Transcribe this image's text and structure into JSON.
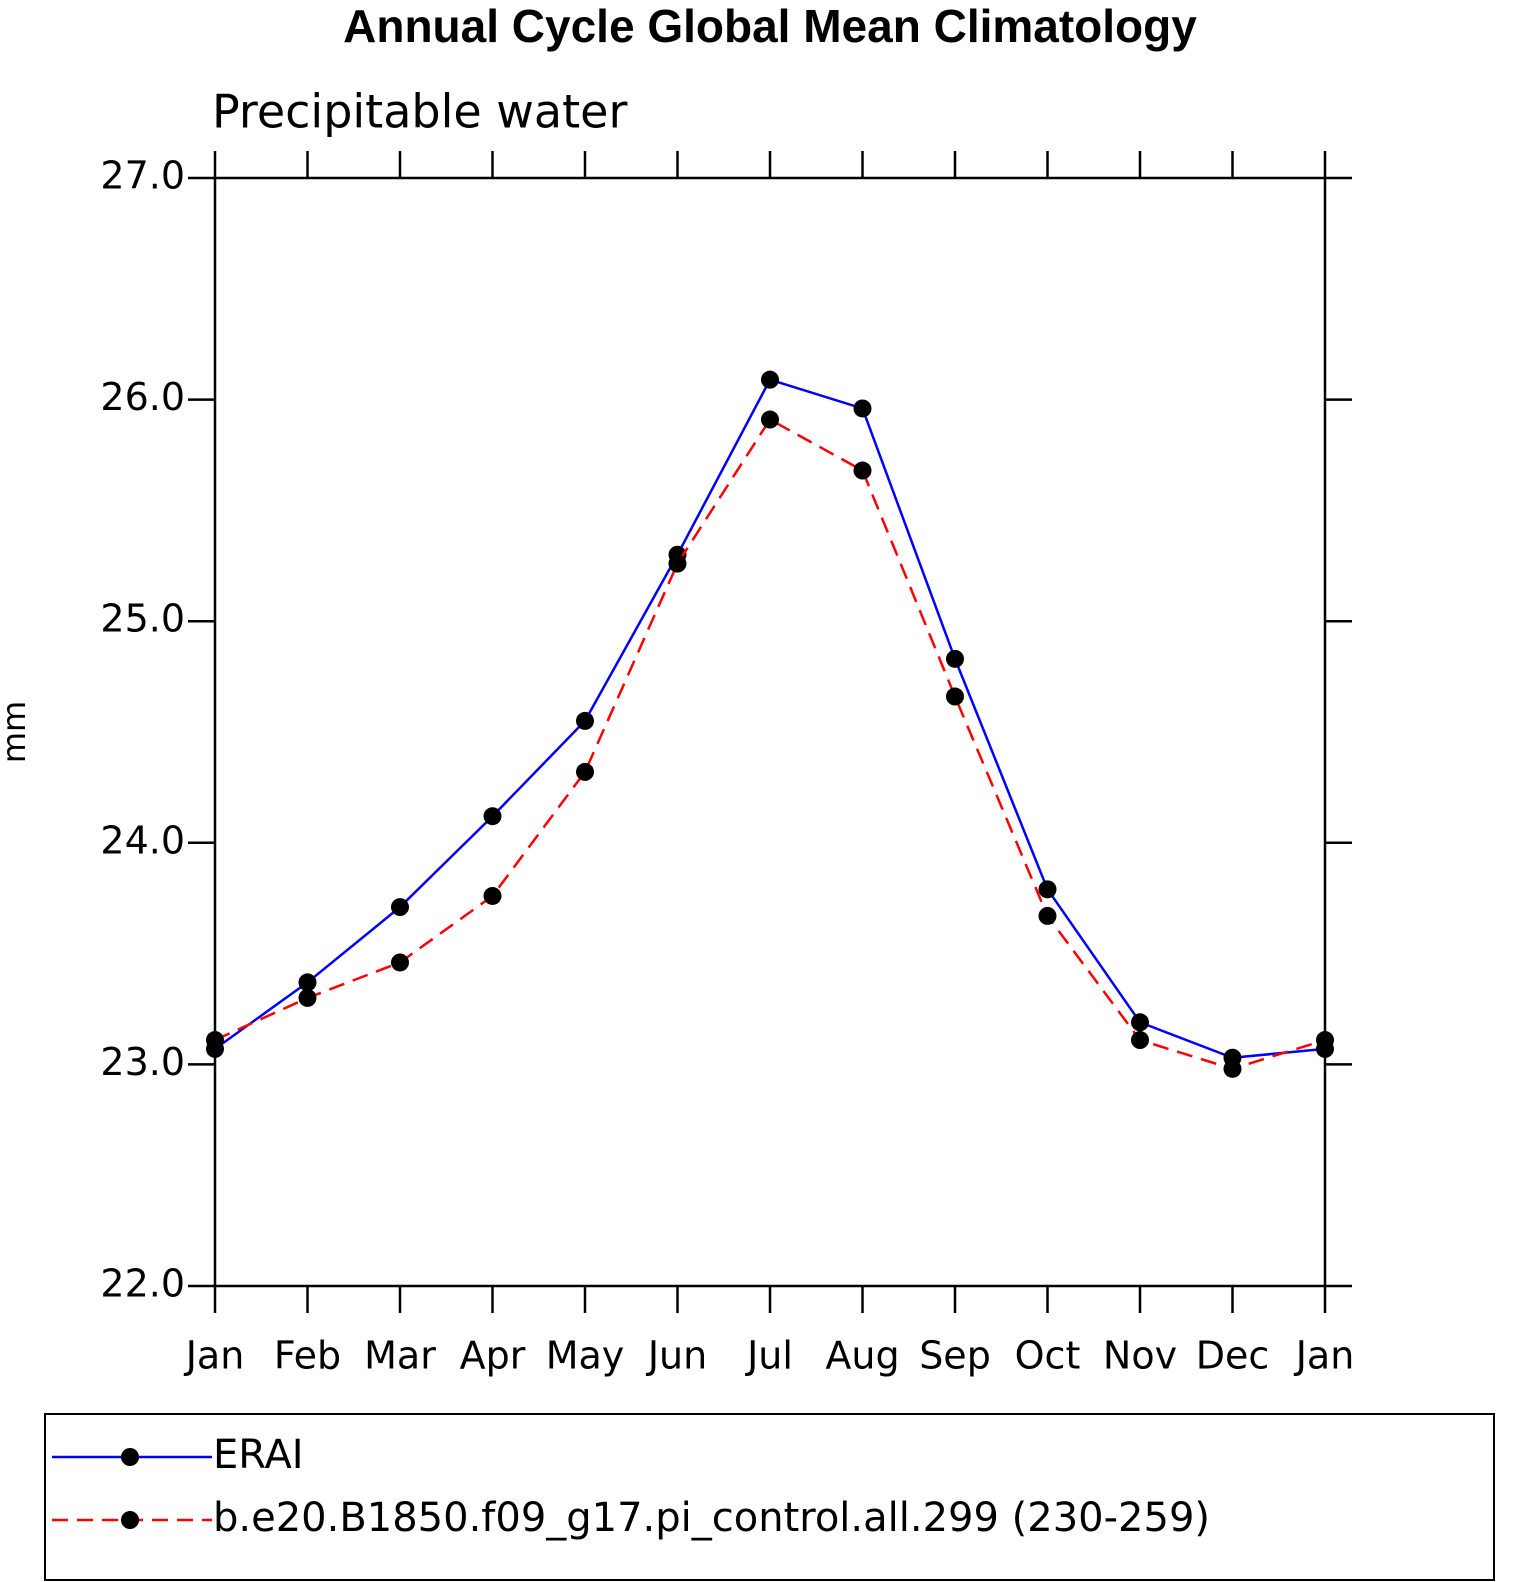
{
  "chart_data": {
    "type": "line",
    "title": "Annual Cycle Global Mean Climatology",
    "subtitle": "Precipitable water",
    "y_label": "mm",
    "categories": [
      "Jan",
      "Feb",
      "Mar",
      "Apr",
      "May",
      "Jun",
      "Jul",
      "Aug",
      "Sep",
      "Oct",
      "Nov",
      "Dec",
      "Jan"
    ],
    "series": [
      {
        "name": "ERAI",
        "color": "#0000ff",
        "dash": false,
        "values": [
          23.07,
          23.37,
          23.71,
          24.12,
          24.55,
          25.3,
          26.09,
          25.96,
          24.83,
          23.79,
          23.19,
          23.03,
          23.07
        ]
      },
      {
        "name": "b.e20.B1850.f09_g17.pi_control.all.299 (230-259)",
        "color": "#ff0000",
        "dash": true,
        "values": [
          23.11,
          23.3,
          23.46,
          23.76,
          24.32,
          25.26,
          25.91,
          25.68,
          24.66,
          23.67,
          23.11,
          22.98,
          23.11
        ]
      }
    ],
    "ylim": [
      22,
      27
    ],
    "yticks": [
      {
        "value": 22,
        "label": "22.0"
      },
      {
        "value": 23,
        "label": "23.0"
      },
      {
        "value": 24,
        "label": "24.0"
      },
      {
        "value": 25,
        "label": "25.0"
      },
      {
        "value": 26,
        "label": "26.0"
      },
      {
        "value": 27,
        "label": "27.0"
      }
    ],
    "grid": false
  }
}
